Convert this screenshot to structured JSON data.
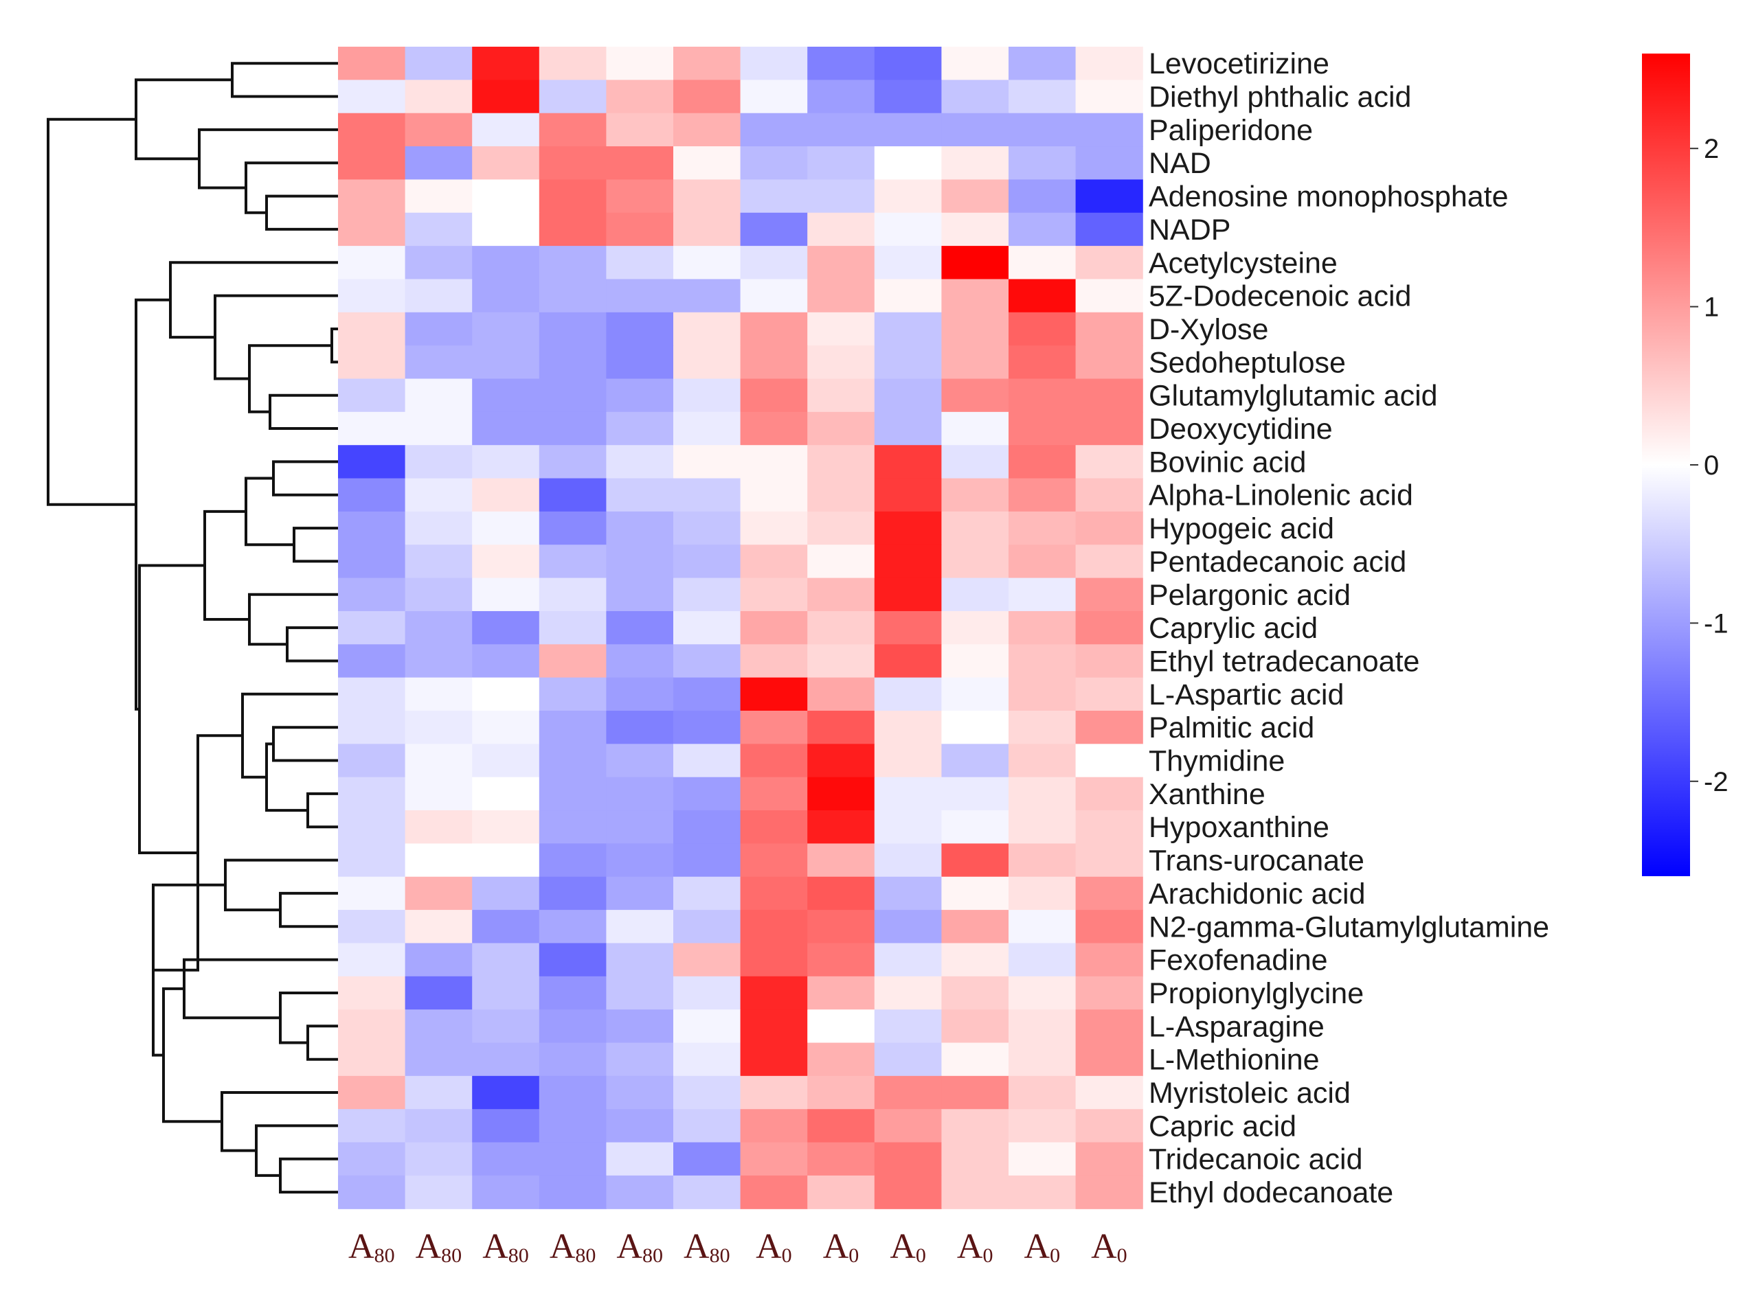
{
  "chart_data": {
    "type": "heatmap",
    "title": "",
    "color_scale": {
      "min": -2.6,
      "max": 2.6,
      "low": "#0000ff",
      "mid": "#ffffff",
      "high": "#ff0000"
    },
    "colorbar_ticks": [
      {
        "value": 2,
        "label": "2"
      },
      {
        "value": 1,
        "label": "1"
      },
      {
        "value": 0,
        "label": "0"
      },
      {
        "value": -1,
        "label": "-1"
      },
      {
        "value": -2,
        "label": "-2"
      }
    ],
    "columns": [
      {
        "base": "A",
        "sub": "80"
      },
      {
        "base": "A",
        "sub": "80"
      },
      {
        "base": "A",
        "sub": "80"
      },
      {
        "base": "A",
        "sub": "80"
      },
      {
        "base": "A",
        "sub": "80"
      },
      {
        "base": "A",
        "sub": "80"
      },
      {
        "base": "A",
        "sub": "0"
      },
      {
        "base": "A",
        "sub": "0"
      },
      {
        "base": "A",
        "sub": "0"
      },
      {
        "base": "A",
        "sub": "0"
      },
      {
        "base": "A",
        "sub": "0"
      },
      {
        "base": "A",
        "sub": "0"
      }
    ],
    "rows": [
      "Levocetirizine",
      "Diethyl phthalic acid",
      "Paliperidone",
      "NAD",
      "Adenosine monophosphate",
      "NADP",
      "Acetylcysteine",
      "5Z-Dodecenoic acid",
      "D-Xylose",
      "Sedoheptulose",
      "Glutamylglutamic acid",
      "Deoxycytidine",
      "Bovinic acid",
      "Alpha-Linolenic acid",
      "Hypogeic acid",
      "Pentadecanoic acid",
      "Pelargonic acid",
      "Caprylic acid",
      "Ethyl tetradecanoate",
      "L-Aspartic acid",
      "Palmitic acid",
      "Thymidine",
      "Xanthine",
      "Hypoxanthine",
      "Trans-urocanate",
      "Arachidonic acid",
      "N2-gamma-Glutamylglutamine",
      "Fexofenadine",
      "Propionylglycine",
      "L-Asparagine",
      "L-Methionine",
      "Myristoleic acid",
      "Capric acid",
      "Tridecanoic acid",
      "Ethyl dodecanoate"
    ],
    "values": [
      [
        1.0,
        -0.6,
        2.3,
        0.4,
        0.1,
        0.8,
        -0.3,
        -1.3,
        -1.5,
        0.1,
        -0.8,
        0.2
      ],
      [
        -0.2,
        0.3,
        2.4,
        -0.5,
        0.7,
        1.2,
        -0.1,
        -1.0,
        -1.4,
        -0.6,
        -0.4,
        0.1
      ],
      [
        1.4,
        1.1,
        -0.2,
        1.3,
        0.6,
        0.8,
        -0.9,
        -0.9,
        -0.9,
        -0.9,
        -0.9,
        -0.9
      ],
      [
        1.4,
        -1.0,
        0.6,
        1.4,
        1.4,
        0.1,
        -0.7,
        -0.6,
        0.0,
        0.2,
        -0.7,
        -0.9
      ],
      [
        0.8,
        0.1,
        0.0,
        1.5,
        1.2,
        0.5,
        -0.5,
        -0.5,
        0.2,
        0.7,
        -1.0,
        -2.2
      ],
      [
        0.8,
        -0.5,
        0.0,
        1.5,
        1.3,
        0.5,
        -1.3,
        0.3,
        -0.1,
        0.2,
        -0.8,
        -1.6
      ],
      [
        -0.1,
        -0.7,
        -0.9,
        -0.8,
        -0.4,
        -0.1,
        -0.3,
        0.8,
        -0.2,
        2.6,
        0.1,
        0.5
      ],
      [
        -0.2,
        -0.3,
        -0.9,
        -0.8,
        -0.8,
        -0.8,
        -0.1,
        0.8,
        0.1,
        0.8,
        2.5,
        0.1
      ],
      [
        0.4,
        -0.9,
        -0.8,
        -1.0,
        -1.2,
        0.3,
        1.0,
        0.2,
        -0.6,
        0.8,
        1.6,
        0.9
      ],
      [
        0.4,
        -0.8,
        -0.8,
        -1.0,
        -1.2,
        0.3,
        1.0,
        0.3,
        -0.6,
        0.8,
        1.5,
        0.9
      ],
      [
        -0.5,
        -0.1,
        -1.0,
        -1.0,
        -0.9,
        -0.3,
        1.3,
        0.4,
        -0.7,
        1.2,
        1.3,
        1.3
      ],
      [
        -0.1,
        -0.1,
        -1.0,
        -1.0,
        -0.7,
        -0.2,
        1.2,
        0.7,
        -0.7,
        -0.1,
        1.3,
        1.3
      ],
      [
        -1.9,
        -0.4,
        -0.3,
        -0.7,
        -0.3,
        0.1,
        0.1,
        0.5,
        2.0,
        -0.3,
        1.4,
        0.4
      ],
      [
        -1.2,
        -0.2,
        0.3,
        -1.6,
        -0.5,
        -0.5,
        0.1,
        0.5,
        2.0,
        0.7,
        1.1,
        0.6
      ],
      [
        -1.0,
        -0.3,
        -0.1,
        -1.2,
        -0.8,
        -0.6,
        0.2,
        0.4,
        2.3,
        0.5,
        0.7,
        0.8
      ],
      [
        -1.0,
        -0.5,
        0.2,
        -0.7,
        -0.8,
        -0.7,
        0.6,
        0.1,
        2.3,
        0.5,
        0.8,
        0.5
      ],
      [
        -0.8,
        -0.6,
        -0.1,
        -0.3,
        -0.8,
        -0.4,
        0.5,
        0.7,
        2.3,
        -0.3,
        -0.2,
        1.1
      ],
      [
        -0.5,
        -0.8,
        -1.2,
        -0.4,
        -1.2,
        -0.2,
        0.9,
        0.5,
        1.5,
        0.2,
        0.7,
        1.2
      ],
      [
        -1.0,
        -0.8,
        -0.9,
        0.8,
        -0.9,
        -0.7,
        0.6,
        0.4,
        1.8,
        0.1,
        0.6,
        0.7
      ],
      [
        -0.3,
        -0.1,
        0.0,
        -0.7,
        -1.0,
        -1.1,
        2.5,
        0.9,
        -0.3,
        -0.1,
        0.6,
        0.5
      ],
      [
        -0.3,
        -0.2,
        -0.1,
        -0.9,
        -1.3,
        -1.2,
        1.2,
        1.7,
        0.3,
        0.0,
        0.4,
        1.1
      ],
      [
        -0.6,
        -0.1,
        -0.2,
        -0.9,
        -0.8,
        -0.3,
        1.5,
        2.3,
        0.3,
        -0.6,
        0.5,
        0.0
      ],
      [
        -0.4,
        -0.1,
        0.0,
        -0.9,
        -0.9,
        -1.0,
        1.3,
        2.5,
        -0.2,
        -0.2,
        0.3,
        0.6
      ],
      [
        -0.4,
        0.3,
        0.2,
        -0.9,
        -0.9,
        -1.1,
        1.5,
        2.3,
        -0.2,
        -0.1,
        0.3,
        0.5
      ],
      [
        -0.4,
        0.0,
        0.0,
        -1.1,
        -1.0,
        -1.1,
        1.4,
        0.8,
        -0.3,
        1.7,
        0.6,
        0.5
      ],
      [
        -0.1,
        0.8,
        -0.7,
        -1.3,
        -0.9,
        -0.4,
        1.5,
        1.7,
        -0.7,
        0.1,
        0.3,
        1.1
      ],
      [
        -0.4,
        0.2,
        -1.1,
        -0.9,
        -0.2,
        -0.6,
        1.6,
        1.5,
        -0.9,
        0.9,
        -0.1,
        1.3
      ],
      [
        -0.2,
        -0.9,
        -0.6,
        -1.5,
        -0.6,
        0.7,
        1.6,
        1.4,
        -0.3,
        0.2,
        -0.3,
        1.0
      ],
      [
        0.3,
        -1.5,
        -0.6,
        -1.1,
        -0.6,
        -0.3,
        2.2,
        0.8,
        0.2,
        0.5,
        0.2,
        0.8
      ],
      [
        0.4,
        -0.8,
        -0.7,
        -1.0,
        -0.9,
        -0.1,
        2.2,
        0.0,
        -0.4,
        0.6,
        0.3,
        1.1
      ],
      [
        0.4,
        -0.8,
        -0.8,
        -0.9,
        -0.7,
        -0.2,
        2.2,
        0.8,
        -0.5,
        0.1,
        0.3,
        1.1
      ],
      [
        0.8,
        -0.4,
        -1.9,
        -1.0,
        -0.8,
        -0.4,
        0.5,
        0.7,
        1.2,
        1.2,
        0.5,
        0.2
      ],
      [
        -0.5,
        -0.6,
        -1.3,
        -1.0,
        -0.9,
        -0.5,
        1.1,
        1.5,
        1.0,
        0.5,
        0.4,
        0.6
      ],
      [
        -0.7,
        -0.5,
        -1.0,
        -1.0,
        -0.3,
        -1.2,
        1.0,
        1.2,
        1.4,
        0.5,
        0.1,
        0.9
      ],
      [
        -0.8,
        -0.4,
        -0.9,
        -1.0,
        -0.8,
        -0.5,
        1.3,
        0.6,
        1.4,
        0.5,
        0.5,
        0.9
      ]
    ]
  }
}
